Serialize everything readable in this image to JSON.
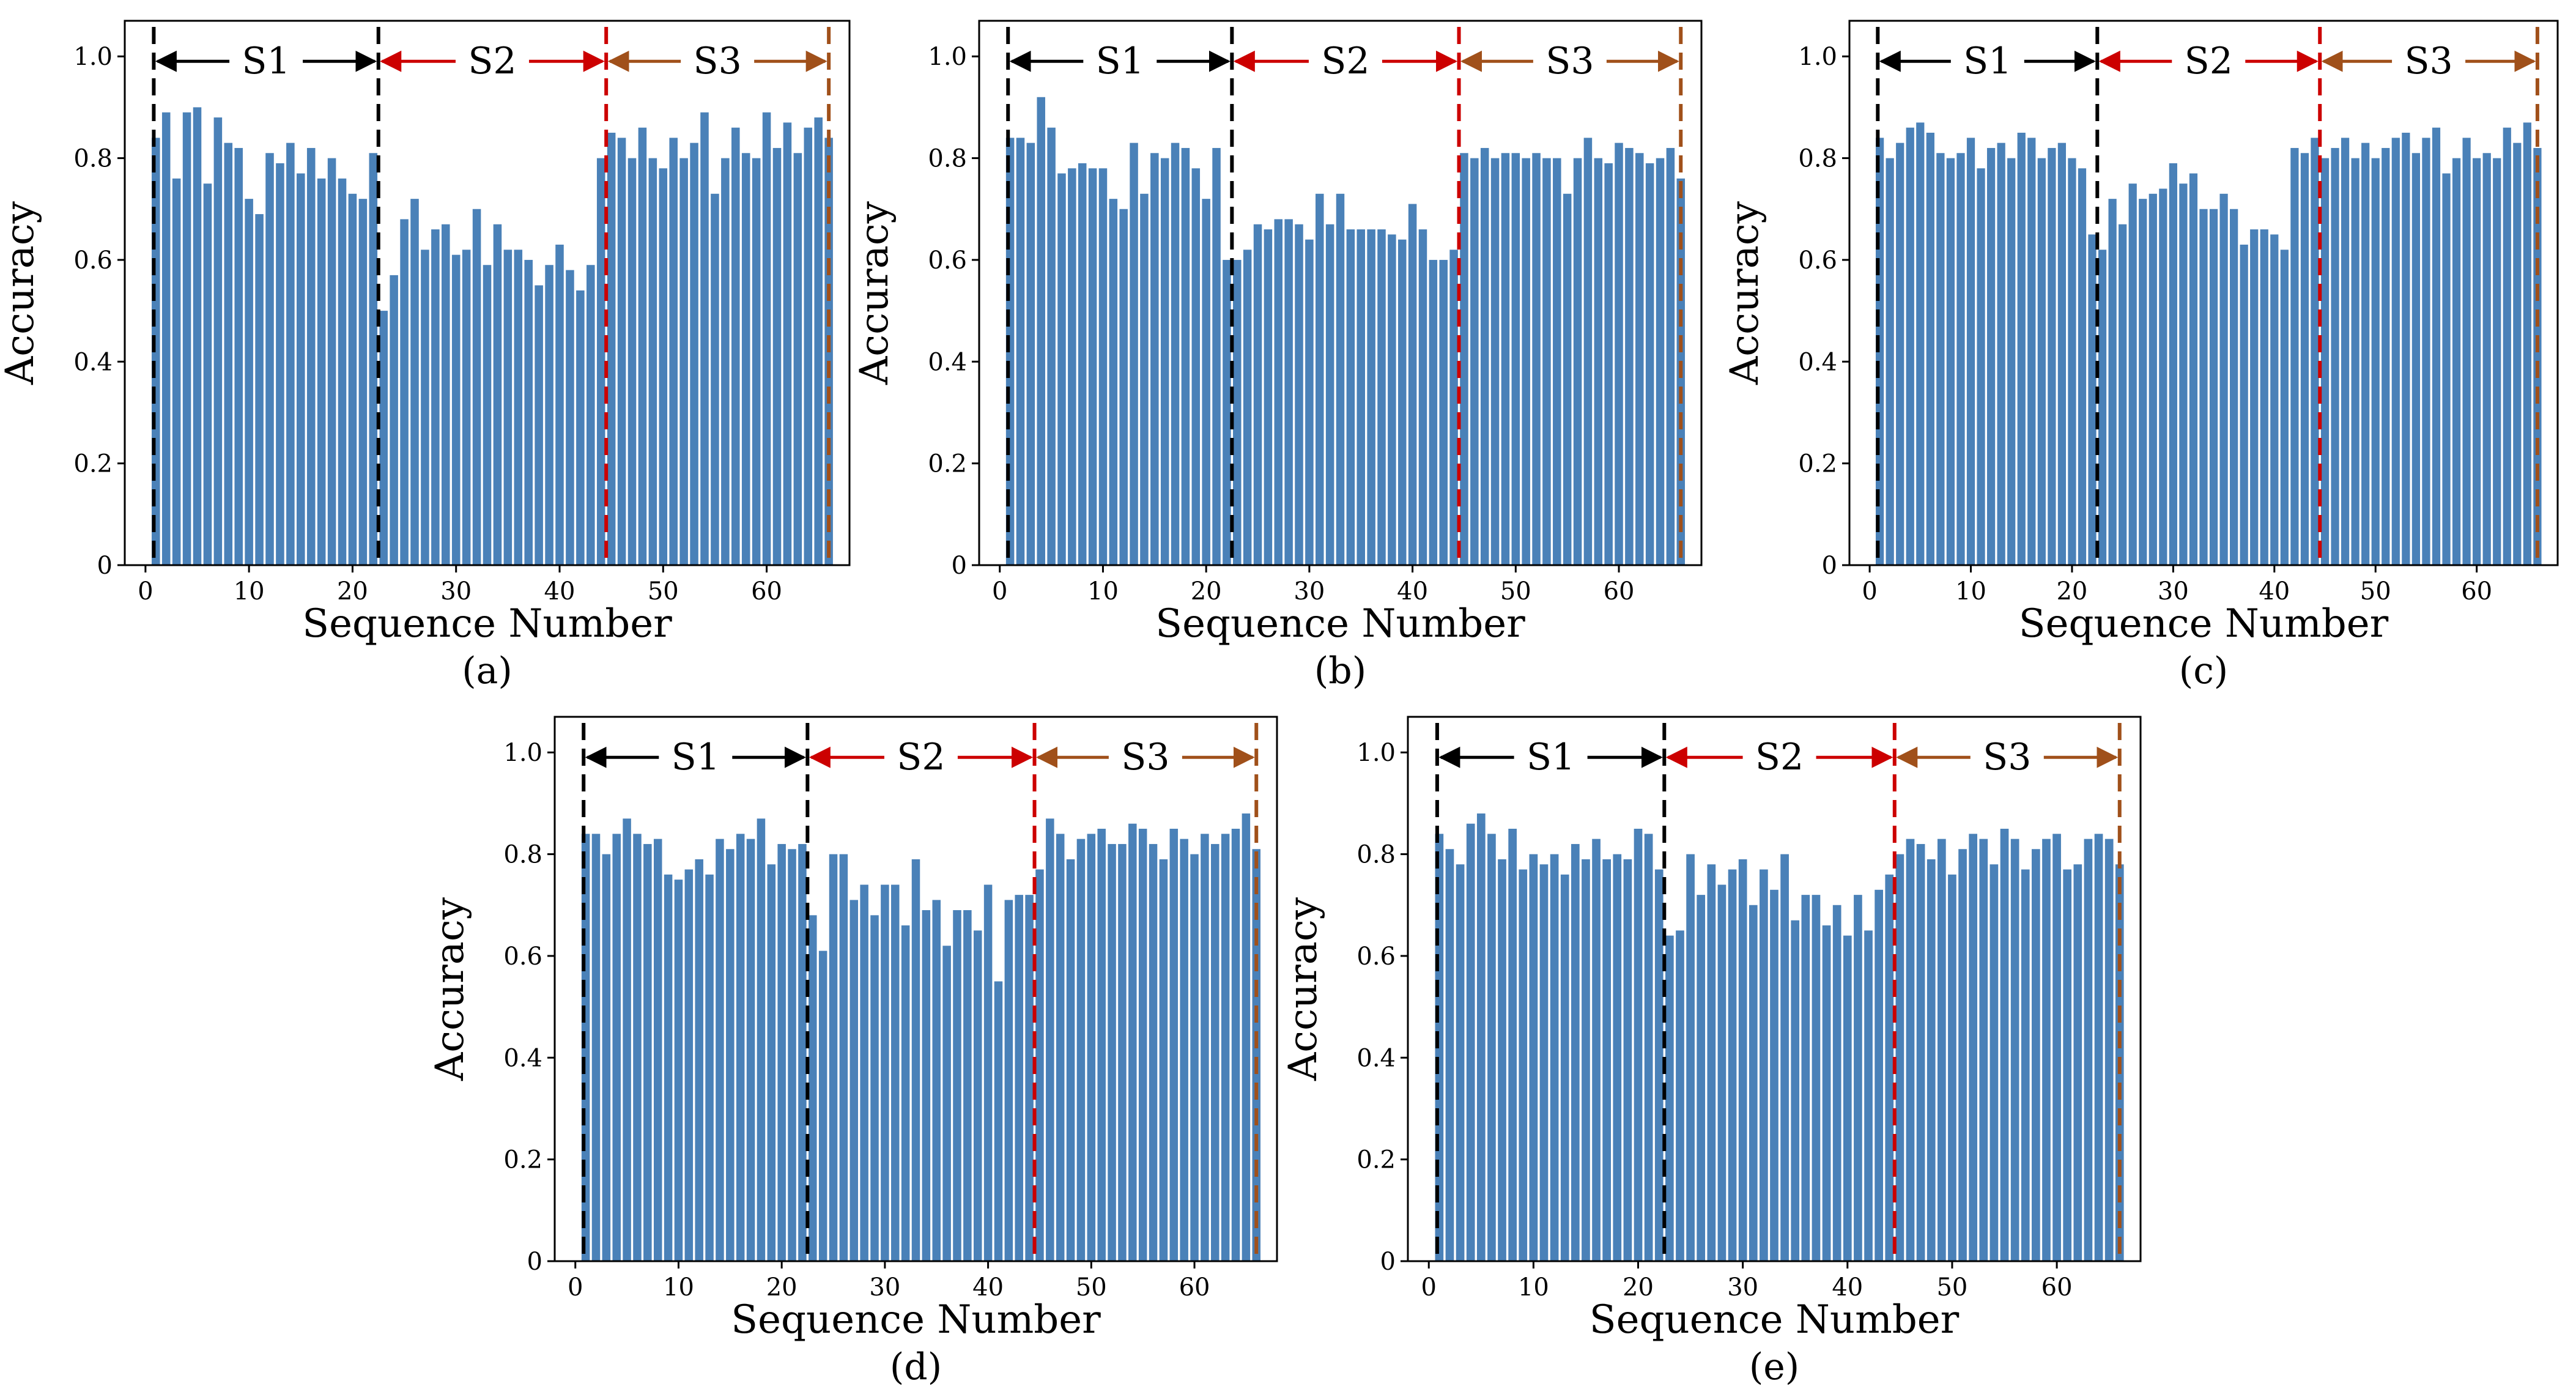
{
  "chart_data": [
    {
      "type": "bar",
      "caption": "(a)",
      "xlabel": "Sequence Number",
      "ylabel": "Accuracy",
      "xlim": [
        -2,
        68
      ],
      "ylim": [
        0,
        1.07
      ],
      "xticks": [
        "0",
        "10",
        "20",
        "30",
        "40",
        "50",
        "60"
      ],
      "yticks": [
        "0",
        "0.2",
        "0.4",
        "0.6",
        "0.8",
        "1.0"
      ],
      "segments": [
        {
          "label": "S1",
          "start": 0.8,
          "end": 22.5,
          "color": "#000000"
        },
        {
          "label": "S2",
          "start": 22.5,
          "end": 44.5,
          "color": "#cc0000"
        },
        {
          "label": "S3",
          "start": 44.5,
          "end": 66.0,
          "color": "#a0501a"
        }
      ],
      "x": [
        1,
        2,
        3,
        4,
        5,
        6,
        7,
        8,
        9,
        10,
        11,
        12,
        13,
        14,
        15,
        16,
        17,
        18,
        19,
        20,
        21,
        22,
        23,
        24,
        25,
        26,
        27,
        28,
        29,
        30,
        31,
        32,
        33,
        34,
        35,
        36,
        37,
        38,
        39,
        40,
        41,
        42,
        43,
        44,
        45,
        46,
        47,
        48,
        49,
        50,
        51,
        52,
        53,
        54,
        55,
        56,
        57,
        58,
        59,
        60,
        61,
        62,
        63,
        64,
        65,
        66
      ],
      "values": [
        0.84,
        0.89,
        0.76,
        0.89,
        0.9,
        0.75,
        0.88,
        0.83,
        0.82,
        0.72,
        0.69,
        0.81,
        0.79,
        0.83,
        0.77,
        0.82,
        0.76,
        0.8,
        0.76,
        0.73,
        0.72,
        0.81,
        0.5,
        0.57,
        0.68,
        0.72,
        0.62,
        0.66,
        0.67,
        0.61,
        0.62,
        0.7,
        0.59,
        0.67,
        0.62,
        0.62,
        0.6,
        0.55,
        0.59,
        0.63,
        0.58,
        0.54,
        0.59,
        0.8,
        0.85,
        0.84,
        0.8,
        0.86,
        0.8,
        0.78,
        0.84,
        0.8,
        0.83,
        0.89,
        0.73,
        0.8,
        0.86,
        0.81,
        0.8,
        0.89,
        0.82,
        0.87,
        0.81,
        0.86,
        0.88,
        0.84
      ]
    },
    {
      "type": "bar",
      "caption": "(b)",
      "xlabel": "Sequence Number",
      "ylabel": "Accuracy",
      "xlim": [
        -2,
        68
      ],
      "ylim": [
        0,
        1.07
      ],
      "xticks": [
        "0",
        "10",
        "20",
        "30",
        "40",
        "50",
        "60"
      ],
      "yticks": [
        "0",
        "0.2",
        "0.4",
        "0.6",
        "0.8",
        "1.0"
      ],
      "segments": [
        {
          "label": "S1",
          "start": 0.8,
          "end": 22.5,
          "color": "#000000"
        },
        {
          "label": "S2",
          "start": 22.5,
          "end": 44.5,
          "color": "#cc0000"
        },
        {
          "label": "S3",
          "start": 44.5,
          "end": 66.0,
          "color": "#a0501a"
        }
      ],
      "x": [
        1,
        2,
        3,
        4,
        5,
        6,
        7,
        8,
        9,
        10,
        11,
        12,
        13,
        14,
        15,
        16,
        17,
        18,
        19,
        20,
        21,
        22,
        23,
        24,
        25,
        26,
        27,
        28,
        29,
        30,
        31,
        32,
        33,
        34,
        35,
        36,
        37,
        38,
        39,
        40,
        41,
        42,
        43,
        44,
        45,
        46,
        47,
        48,
        49,
        50,
        51,
        52,
        53,
        54,
        55,
        56,
        57,
        58,
        59,
        60,
        61,
        62,
        63,
        64,
        65,
        66
      ],
      "values": [
        0.84,
        0.84,
        0.83,
        0.92,
        0.86,
        0.77,
        0.78,
        0.79,
        0.78,
        0.78,
        0.72,
        0.7,
        0.83,
        0.73,
        0.81,
        0.8,
        0.83,
        0.82,
        0.78,
        0.72,
        0.82,
        0.6,
        0.6,
        0.62,
        0.67,
        0.66,
        0.68,
        0.68,
        0.67,
        0.64,
        0.73,
        0.67,
        0.73,
        0.66,
        0.66,
        0.66,
        0.66,
        0.65,
        0.64,
        0.71,
        0.66,
        0.6,
        0.6,
        0.62,
        0.81,
        0.8,
        0.82,
        0.8,
        0.81,
        0.81,
        0.8,
        0.81,
        0.8,
        0.8,
        0.73,
        0.8,
        0.84,
        0.8,
        0.79,
        0.83,
        0.82,
        0.81,
        0.79,
        0.8,
        0.82,
        0.76
      ]
    },
    {
      "type": "bar",
      "caption": "(c)",
      "xlabel": "Sequence Number",
      "ylabel": "Accuracy",
      "xlim": [
        -2,
        68
      ],
      "ylim": [
        0,
        1.07
      ],
      "xticks": [
        "0",
        "10",
        "20",
        "30",
        "40",
        "50",
        "60"
      ],
      "yticks": [
        "0",
        "0.2",
        "0.4",
        "0.6",
        "0.8",
        "1.0"
      ],
      "segments": [
        {
          "label": "S1",
          "start": 0.8,
          "end": 22.5,
          "color": "#000000"
        },
        {
          "label": "S2",
          "start": 22.5,
          "end": 44.5,
          "color": "#cc0000"
        },
        {
          "label": "S3",
          "start": 44.5,
          "end": 66.0,
          "color": "#a0501a"
        }
      ],
      "x": [
        1,
        2,
        3,
        4,
        5,
        6,
        7,
        8,
        9,
        10,
        11,
        12,
        13,
        14,
        15,
        16,
        17,
        18,
        19,
        20,
        21,
        22,
        23,
        24,
        25,
        26,
        27,
        28,
        29,
        30,
        31,
        32,
        33,
        34,
        35,
        36,
        37,
        38,
        39,
        40,
        41,
        42,
        43,
        44,
        45,
        46,
        47,
        48,
        49,
        50,
        51,
        52,
        53,
        54,
        55,
        56,
        57,
        58,
        59,
        60,
        61,
        62,
        63,
        64,
        65,
        66
      ],
      "values": [
        0.84,
        0.8,
        0.83,
        0.86,
        0.87,
        0.85,
        0.81,
        0.8,
        0.81,
        0.84,
        0.78,
        0.82,
        0.83,
        0.8,
        0.85,
        0.84,
        0.8,
        0.82,
        0.83,
        0.8,
        0.78,
        0.65,
        0.62,
        0.72,
        0.67,
        0.75,
        0.72,
        0.73,
        0.74,
        0.79,
        0.75,
        0.77,
        0.7,
        0.7,
        0.73,
        0.7,
        0.63,
        0.66,
        0.66,
        0.65,
        0.62,
        0.82,
        0.81,
        0.84,
        0.8,
        0.82,
        0.84,
        0.8,
        0.83,
        0.8,
        0.82,
        0.84,
        0.85,
        0.81,
        0.84,
        0.86,
        0.77,
        0.8,
        0.84,
        0.8,
        0.81,
        0.8,
        0.86,
        0.83,
        0.87,
        0.82
      ]
    },
    {
      "type": "bar",
      "caption": "(d)",
      "xlabel": "Sequence Number",
      "ylabel": "Accuracy",
      "xlim": [
        -2,
        68
      ],
      "ylim": [
        0,
        1.07
      ],
      "xticks": [
        "0",
        "10",
        "20",
        "30",
        "40",
        "50",
        "60"
      ],
      "yticks": [
        "0",
        "0.2",
        "0.4",
        "0.6",
        "0.8",
        "1.0"
      ],
      "segments": [
        {
          "label": "S1",
          "start": 0.8,
          "end": 22.5,
          "color": "#000000"
        },
        {
          "label": "S2",
          "start": 22.5,
          "end": 44.5,
          "color": "#cc0000"
        },
        {
          "label": "S3",
          "start": 44.5,
          "end": 66.0,
          "color": "#a0501a"
        }
      ],
      "x": [
        1,
        2,
        3,
        4,
        5,
        6,
        7,
        8,
        9,
        10,
        11,
        12,
        13,
        14,
        15,
        16,
        17,
        18,
        19,
        20,
        21,
        22,
        23,
        24,
        25,
        26,
        27,
        28,
        29,
        30,
        31,
        32,
        33,
        34,
        35,
        36,
        37,
        38,
        39,
        40,
        41,
        42,
        43,
        44,
        45,
        46,
        47,
        48,
        49,
        50,
        51,
        52,
        53,
        54,
        55,
        56,
        57,
        58,
        59,
        60,
        61,
        62,
        63,
        64,
        65,
        66
      ],
      "values": [
        0.84,
        0.84,
        0.8,
        0.84,
        0.87,
        0.84,
        0.82,
        0.83,
        0.76,
        0.75,
        0.77,
        0.79,
        0.76,
        0.83,
        0.81,
        0.84,
        0.83,
        0.87,
        0.78,
        0.82,
        0.81,
        0.82,
        0.68,
        0.61,
        0.8,
        0.8,
        0.71,
        0.74,
        0.68,
        0.74,
        0.74,
        0.66,
        0.79,
        0.69,
        0.71,
        0.62,
        0.69,
        0.69,
        0.65,
        0.74,
        0.55,
        0.71,
        0.72,
        0.72,
        0.77,
        0.87,
        0.84,
        0.79,
        0.83,
        0.84,
        0.85,
        0.82,
        0.82,
        0.86,
        0.85,
        0.82,
        0.79,
        0.85,
        0.83,
        0.8,
        0.84,
        0.82,
        0.84,
        0.85,
        0.88,
        0.81
      ]
    },
    {
      "type": "bar",
      "caption": "(e)",
      "xlabel": "Sequence Number",
      "ylabel": "Accuracy",
      "xlim": [
        -2,
        68
      ],
      "ylim": [
        0,
        1.07
      ],
      "xticks": [
        "0",
        "10",
        "20",
        "30",
        "40",
        "50",
        "60"
      ],
      "yticks": [
        "0",
        "0.2",
        "0.4",
        "0.6",
        "0.8",
        "1.0"
      ],
      "segments": [
        {
          "label": "S1",
          "start": 0.8,
          "end": 22.5,
          "color": "#000000"
        },
        {
          "label": "S2",
          "start": 22.5,
          "end": 44.5,
          "color": "#cc0000"
        },
        {
          "label": "S3",
          "start": 44.5,
          "end": 66.0,
          "color": "#a0501a"
        }
      ],
      "x": [
        1,
        2,
        3,
        4,
        5,
        6,
        7,
        8,
        9,
        10,
        11,
        12,
        13,
        14,
        15,
        16,
        17,
        18,
        19,
        20,
        21,
        22,
        23,
        24,
        25,
        26,
        27,
        28,
        29,
        30,
        31,
        32,
        33,
        34,
        35,
        36,
        37,
        38,
        39,
        40,
        41,
        42,
        43,
        44,
        45,
        46,
        47,
        48,
        49,
        50,
        51,
        52,
        53,
        54,
        55,
        56,
        57,
        58,
        59,
        60,
        61,
        62,
        63,
        64,
        65,
        66
      ],
      "values": [
        0.84,
        0.81,
        0.78,
        0.86,
        0.88,
        0.84,
        0.79,
        0.85,
        0.77,
        0.8,
        0.78,
        0.8,
        0.76,
        0.82,
        0.79,
        0.83,
        0.79,
        0.8,
        0.79,
        0.85,
        0.84,
        0.77,
        0.64,
        0.65,
        0.8,
        0.72,
        0.78,
        0.74,
        0.77,
        0.79,
        0.7,
        0.77,
        0.73,
        0.8,
        0.67,
        0.72,
        0.72,
        0.66,
        0.7,
        0.64,
        0.72,
        0.65,
        0.73,
        0.76,
        0.8,
        0.83,
        0.82,
        0.79,
        0.83,
        0.76,
        0.81,
        0.84,
        0.83,
        0.78,
        0.85,
        0.83,
        0.77,
        0.81,
        0.83,
        0.84,
        0.77,
        0.78,
        0.83,
        0.84,
        0.83,
        0.78
      ]
    }
  ]
}
